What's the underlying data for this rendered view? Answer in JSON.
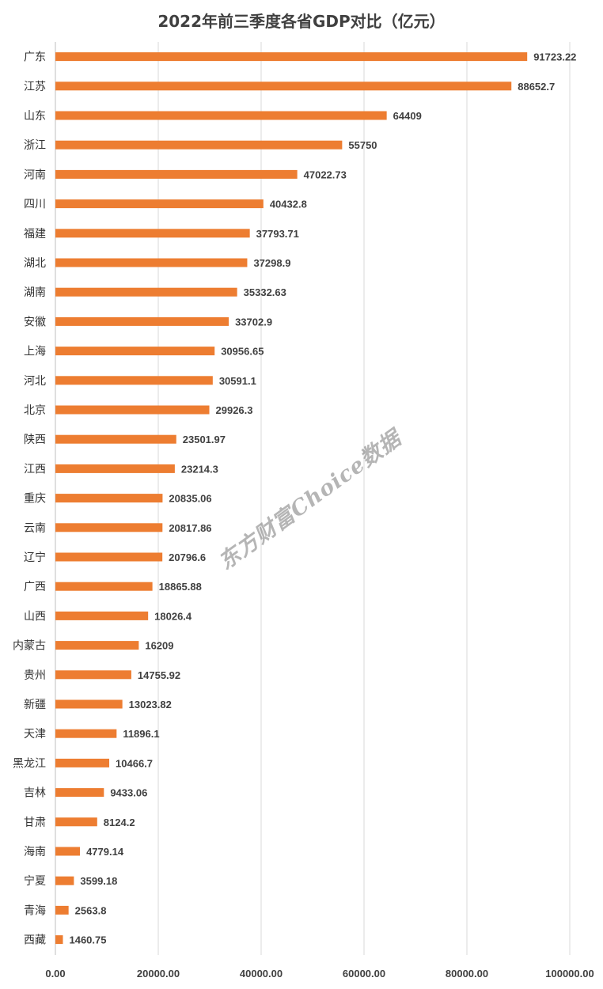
{
  "chart_data": {
    "type": "bar",
    "orientation": "horizontal",
    "title": "2022年前三季度各省GDP对比（亿元）",
    "categories": [
      "广东",
      "江苏",
      "山东",
      "浙江",
      "河南",
      "四川",
      "福建",
      "湖北",
      "湖南",
      "安徽",
      "上海",
      "河北",
      "北京",
      "陕西",
      "江西",
      "重庆",
      "云南",
      "辽宁",
      "广西",
      "山西",
      "内蒙古",
      "贵州",
      "新疆",
      "天津",
      "黑龙江",
      "吉林",
      "甘肃",
      "海南",
      "宁夏",
      "青海",
      "西藏"
    ],
    "values": [
      91723.22,
      88652.7,
      64409,
      55750,
      47022.73,
      40432.8,
      37793.71,
      37298.9,
      35332.63,
      33702.9,
      30956.65,
      30591.1,
      29926.3,
      23501.97,
      23214.3,
      20835.06,
      20817.86,
      20796.6,
      18865.88,
      18026.4,
      16209,
      14755.92,
      13023.82,
      11896.1,
      10466.7,
      9433.06,
      8124.2,
      4779.14,
      3599.18,
      2563.8,
      1460.75
    ],
    "value_labels": [
      "91723.22",
      "88652.7",
      "64409",
      "55750",
      "47022.73",
      "40432.8",
      "37793.71",
      "37298.9",
      "35332.63",
      "33702.9",
      "30956.65",
      "30591.1",
      "29926.3",
      "23501.97",
      "23214.3",
      "20835.06",
      "20817.86",
      "20796.6",
      "18865.88",
      "18026.4",
      "16209",
      "14755.92",
      "13023.82",
      "11896.1",
      "10466.7",
      "9433.06",
      "8124.2",
      "4779.14",
      "3599.18",
      "2563.8",
      "1460.75"
    ],
    "xlim": [
      0,
      100000
    ],
    "xticks": [
      0,
      20000,
      40000,
      60000,
      80000,
      100000
    ],
    "xtick_labels": [
      "0.00",
      "20000.00",
      "40000.00",
      "60000.00",
      "80000.00",
      "100000.00"
    ],
    "grid": true,
    "legend": "none",
    "bar_color": "#ED7D31"
  },
  "watermark": "东方财富Choice数据"
}
